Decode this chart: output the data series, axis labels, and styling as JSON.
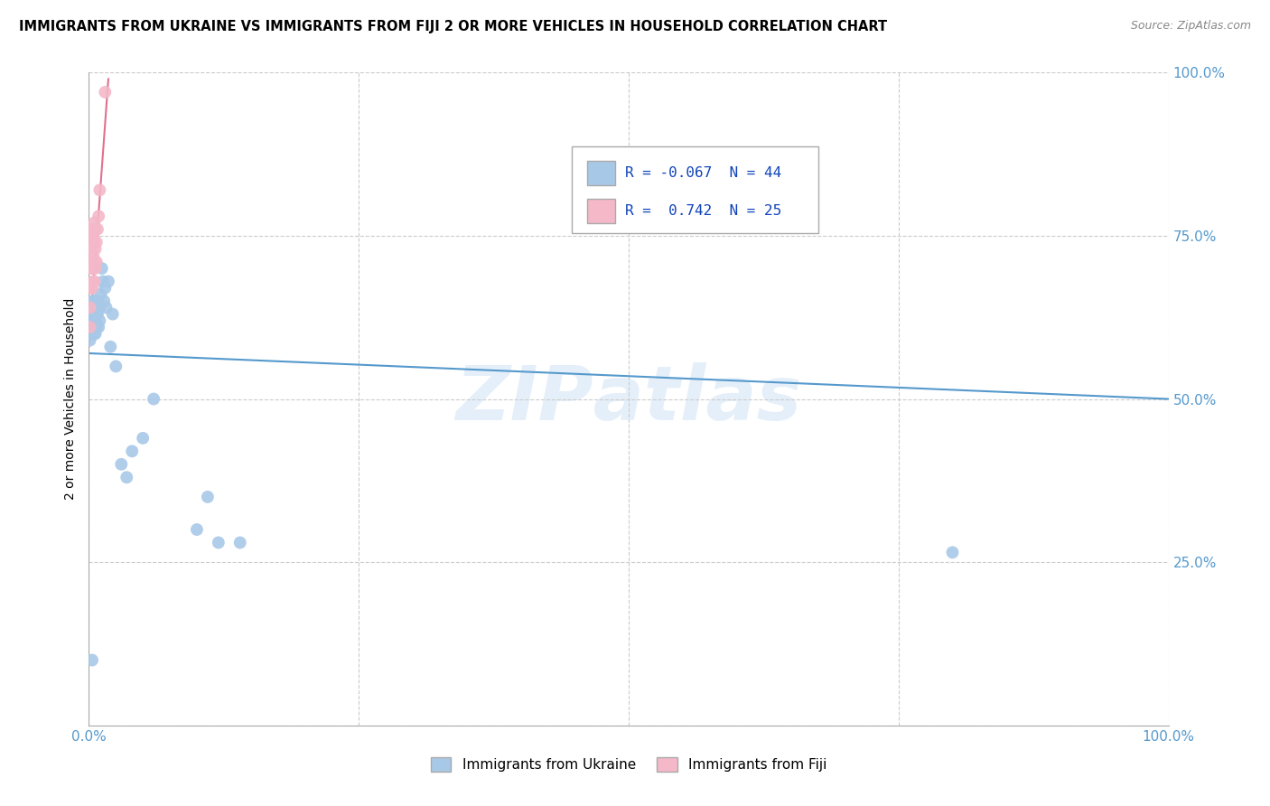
{
  "title": "IMMIGRANTS FROM UKRAINE VS IMMIGRANTS FROM FIJI 2 OR MORE VEHICLES IN HOUSEHOLD CORRELATION CHART",
  "source": "Source: ZipAtlas.com",
  "ylabel": "2 or more Vehicles in Household",
  "xlim": [
    0.0,
    1.0
  ],
  "ylim": [
    0.0,
    1.0
  ],
  "ukraine_color": "#a8c8e8",
  "fiji_color": "#f4b8c8",
  "ukraine_line_color": "#5599cc",
  "fiji_line_color": "#e07090",
  "legend_R_ukraine": "-0.067",
  "legend_N_ukraine": "44",
  "legend_R_fiji": "0.742",
  "legend_N_fiji": "25",
  "ukraine_x": [
    0.001,
    0.002,
    0.002,
    0.003,
    0.003,
    0.003,
    0.004,
    0.004,
    0.004,
    0.005,
    0.005,
    0.005,
    0.006,
    0.006,
    0.006,
    0.007,
    0.007,
    0.008,
    0.008,
    0.009,
    0.009,
    0.01,
    0.01,
    0.011,
    0.012,
    0.013,
    0.014,
    0.015,
    0.016,
    0.018,
    0.02,
    0.022,
    0.025,
    0.03,
    0.035,
    0.04,
    0.05,
    0.06,
    0.1,
    0.11,
    0.12,
    0.14,
    0.8,
    0.003
  ],
  "ukraine_y": [
    0.59,
    0.61,
    0.63,
    0.6,
    0.62,
    0.65,
    0.6,
    0.62,
    0.64,
    0.6,
    0.63,
    0.65,
    0.6,
    0.62,
    0.64,
    0.61,
    0.63,
    0.63,
    0.65,
    0.61,
    0.64,
    0.62,
    0.64,
    0.66,
    0.7,
    0.68,
    0.65,
    0.67,
    0.64,
    0.68,
    0.58,
    0.63,
    0.55,
    0.4,
    0.38,
    0.42,
    0.44,
    0.5,
    0.3,
    0.35,
    0.28,
    0.28,
    0.265,
    0.1
  ],
  "fiji_x": [
    0.001,
    0.001,
    0.002,
    0.002,
    0.002,
    0.003,
    0.003,
    0.003,
    0.003,
    0.004,
    0.004,
    0.004,
    0.005,
    0.005,
    0.005,
    0.005,
    0.006,
    0.006,
    0.006,
    0.007,
    0.007,
    0.008,
    0.009,
    0.01,
    0.015
  ],
  "fiji_y": [
    0.61,
    0.64,
    0.67,
    0.7,
    0.73,
    0.67,
    0.7,
    0.73,
    0.76,
    0.68,
    0.72,
    0.75,
    0.68,
    0.71,
    0.74,
    0.77,
    0.7,
    0.73,
    0.76,
    0.71,
    0.74,
    0.76,
    0.78,
    0.82,
    0.97
  ],
  "ukraine_line_x0": 0.0,
  "ukraine_line_y0": 0.57,
  "ukraine_line_x1": 1.0,
  "ukraine_line_y1": 0.5,
  "fiji_line_x0": 0.0,
  "fiji_line_y0": 0.58,
  "fiji_line_x1": 0.018,
  "fiji_line_y1": 0.99
}
